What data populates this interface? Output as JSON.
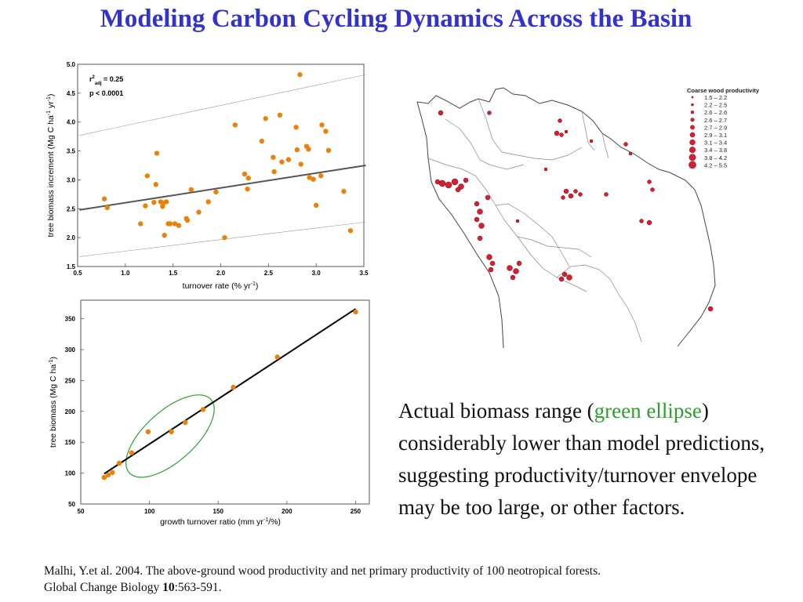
{
  "title": "Modeling Carbon Cycling Dynamics Across the Basin",
  "description": {
    "part1": "Actual biomass range (",
    "green": "green ellipse",
    "part2": ") considerably lower than model predictions, suggesting productivity/turnover envelope may be too large, or other factors."
  },
  "citation": {
    "line1": "Malhi, Y.et al. 2004. The above-ground wood productivity and net primary productivity of 100 neotropical forests.",
    "line2_prefix": "Global Change Biology ",
    "volume": "10",
    "line2_suffix": ":563-591."
  },
  "colors": {
    "title": "#3333cc",
    "points": "#e8820a",
    "green_text": "#2ca02c",
    "ellipse": "#2ca02c",
    "map_sites": "#d42030"
  },
  "chart_data": [
    {
      "type": "scatter",
      "xlabel": "turnover rate (% yr-1)",
      "ylabel": "tree biomass increment (Mg C ha-1 yr-1)",
      "xlim": [
        0.5,
        3.5
      ],
      "ylim": [
        1.5,
        5.0
      ],
      "xticks": [
        "0.5",
        "1.0",
        "1.5",
        "2.0",
        "2.5",
        "3.0",
        "3.5"
      ],
      "yticks": [
        "1.5",
        "2.0",
        "2.5",
        "3.0",
        "3.5",
        "4.0",
        "4.5",
        "5.0"
      ],
      "annotation": {
        "r2": "r2adj = 0.25",
        "p": "p < 0.0001"
      },
      "fit": {
        "x": [
          0.52,
          3.52
        ],
        "y": [
          2.48,
          3.25
        ]
      },
      "envelope_upper": {
        "x": [
          0.52,
          3.52
        ],
        "y": [
          3.77,
          4.82
        ]
      },
      "envelope_lower": {
        "x": [
          0.52,
          3.52
        ],
        "y": [
          1.67,
          2.27
        ]
      },
      "points": [
        [
          0.78,
          2.67
        ],
        [
          0.81,
          2.52
        ],
        [
          1.16,
          2.24
        ],
        [
          1.21,
          2.55
        ],
        [
          1.23,
          3.07
        ],
        [
          1.3,
          2.61
        ],
        [
          1.32,
          2.92
        ],
        [
          1.33,
          3.46
        ],
        [
          1.37,
          2.62
        ],
        [
          1.39,
          2.54
        ],
        [
          1.4,
          2.6
        ],
        [
          1.41,
          2.04
        ],
        [
          1.43,
          2.62
        ],
        [
          1.45,
          2.24
        ],
        [
          1.47,
          2.24
        ],
        [
          1.52,
          2.24
        ],
        [
          1.56,
          2.21
        ],
        [
          1.64,
          2.33
        ],
        [
          1.65,
          2.3
        ],
        [
          1.69,
          2.83
        ],
        [
          1.77,
          2.44
        ],
        [
          1.87,
          2.62
        ],
        [
          1.95,
          2.79
        ],
        [
          2.04,
          2.0
        ],
        [
          2.15,
          3.95
        ],
        [
          2.25,
          3.1
        ],
        [
          2.28,
          2.84
        ],
        [
          2.29,
          3.03
        ],
        [
          2.43,
          3.67
        ],
        [
          2.47,
          4.06
        ],
        [
          2.55,
          3.39
        ],
        [
          2.56,
          3.14
        ],
        [
          2.62,
          4.12
        ],
        [
          2.64,
          3.31
        ],
        [
          2.71,
          3.35
        ],
        [
          2.79,
          3.91
        ],
        [
          2.8,
          3.52
        ],
        [
          2.83,
          4.82
        ],
        [
          2.84,
          3.27
        ],
        [
          2.9,
          3.58
        ],
        [
          2.92,
          3.53
        ],
        [
          2.93,
          3.04
        ],
        [
          2.97,
          3.01
        ],
        [
          3.0,
          2.56
        ],
        [
          3.05,
          3.07
        ],
        [
          3.06,
          3.95
        ],
        [
          3.1,
          3.84
        ],
        [
          3.13,
          3.51
        ],
        [
          3.29,
          2.8
        ],
        [
          3.36,
          2.12
        ]
      ]
    },
    {
      "type": "scatter",
      "xlabel": "growth turnover ratio (mm yr-1/%)",
      "ylabel": "tree biomass (Mg C ha-1)",
      "xlim": [
        50,
        260
      ],
      "ylim": [
        50,
        380
      ],
      "xticks": [
        "50",
        "100",
        "150",
        "200",
        "250"
      ],
      "yticks": [
        "50",
        "100",
        "150",
        "200",
        "250",
        "300",
        "350"
      ],
      "fit": {
        "x": [
          67,
          250
        ],
        "y": [
          99,
          366
        ]
      },
      "ellipse": {
        "cx": 115,
        "cy": 160,
        "note": "green ellipse"
      },
      "points": [
        [
          67,
          93
        ],
        [
          70,
          97
        ],
        [
          73,
          101
        ],
        [
          78,
          116
        ],
        [
          87,
          133
        ],
        [
          99,
          167
        ],
        [
          116,
          167
        ],
        [
          126,
          182
        ],
        [
          139,
          203
        ],
        [
          161,
          239
        ],
        [
          193,
          288
        ],
        [
          250,
          361
        ]
      ]
    }
  ],
  "map": {
    "legend_title": "Coarse wood productivity",
    "legend": [
      "1.5 – 2.2",
      "2.2 – 2.5",
      "2.6 – 2.6",
      "2.6 – 2.7",
      "2.7 – 2.9",
      "2.9 – 3.1",
      "3.1 – 3.4",
      "3.4 – 3.8",
      "3.8 – 4.2",
      "4.2 – 5.5"
    ]
  }
}
